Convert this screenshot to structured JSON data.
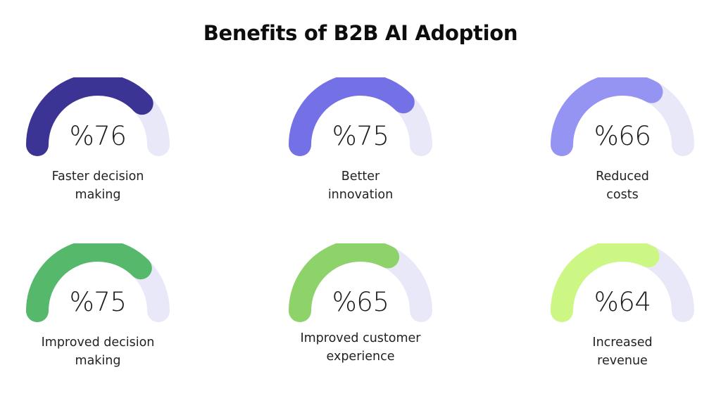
{
  "title": "Benefits of B2B AI Adoption",
  "track_color": "#e9e8f9",
  "gauges": [
    {
      "value": 76,
      "display": "%76",
      "label_line1": "Faster decision",
      "label_line2": "making",
      "color": "#3c3494"
    },
    {
      "value": 75,
      "display": "%75",
      "label_line1": "Better",
      "label_line2": "innovation",
      "color": "#7471e6"
    },
    {
      "value": 66,
      "display": "%66",
      "label_line1": "Reduced",
      "label_line2": "costs",
      "color": "#9694f3"
    },
    {
      "value": 75,
      "display": "%75",
      "label_line1": "Improved decision",
      "label_line2": "making",
      "color": "#55b86a"
    },
    {
      "value": 65,
      "display": "%65",
      "label_line1": "Improved customer",
      "label_line2": "experience",
      "color": "#8dd36a"
    },
    {
      "value": 64,
      "display": "%64",
      "label_line1": "Increased",
      "label_line2": "revenue",
      "color": "#ccf785"
    }
  ],
  "chart_data": {
    "type": "gauge",
    "title": "Benefits of B2B AI Adoption",
    "categories": [
      "Faster decision making",
      "Better innovation",
      "Reduced costs",
      "Improved decision making",
      "Improved customer experience",
      "Increased revenue"
    ],
    "values": [
      76,
      75,
      66,
      75,
      65,
      64
    ],
    "unit": "%",
    "ylim": [
      0,
      100
    ],
    "layout": "2 rows x 3 columns of semicircular gauges",
    "colors": [
      "#3c3494",
      "#7471e6",
      "#9694f3",
      "#55b86a",
      "#8dd36a",
      "#ccf785"
    ]
  }
}
